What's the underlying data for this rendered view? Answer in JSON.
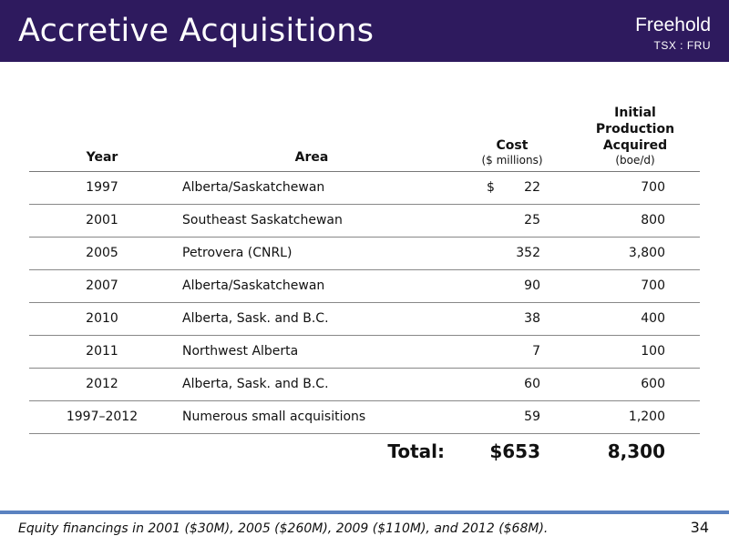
{
  "header": {
    "title": "Accretive Acquisitions",
    "brand": "Freehold",
    "ticker": "TSX : FRU",
    "background_color": "#2e1a5e"
  },
  "table": {
    "headers": {
      "year": "Year",
      "area": "Area",
      "cost": "Cost",
      "cost_sub": "($ millions)",
      "production": "Initial Production Acquired",
      "production_sub": "(boe/d)"
    },
    "rows": [
      {
        "year": "1997",
        "area": "Alberta/Saskatchewan",
        "cost_prefix": "$",
        "cost": "22",
        "production": "700"
      },
      {
        "year": "2001",
        "area": "Southeast Saskatchewan",
        "cost_prefix": "",
        "cost": "25",
        "production": "800"
      },
      {
        "year": "2005",
        "area": "Petrovera (CNRL)",
        "cost_prefix": "",
        "cost": "352",
        "production": "3,800"
      },
      {
        "year": "2007",
        "area": "Alberta/Saskatchewan",
        "cost_prefix": "",
        "cost": "90",
        "production": "700"
      },
      {
        "year": "2010",
        "area": "Alberta, Sask. and B.C.",
        "cost_prefix": "",
        "cost": "38",
        "production": "400"
      },
      {
        "year": "2011",
        "area": "Northwest Alberta",
        "cost_prefix": "",
        "cost": "7",
        "production": "100"
      },
      {
        "year": "2012",
        "area": "Alberta, Sask. and B.C.",
        "cost_prefix": "",
        "cost": "60",
        "production": "600"
      },
      {
        "year": "1997–2012",
        "area": "Numerous small acquisitions",
        "cost_prefix": "",
        "cost": "59",
        "production": "1,200"
      }
    ],
    "total": {
      "label": "Total:",
      "cost": "$653",
      "production": "8,300"
    }
  },
  "footer": {
    "note": "Equity financings in 2001 ($30M), 2005 ($260M), 2009 ($110M), and 2012 ($68M).",
    "page_number": "34",
    "bar_color": "#5a82c0"
  }
}
